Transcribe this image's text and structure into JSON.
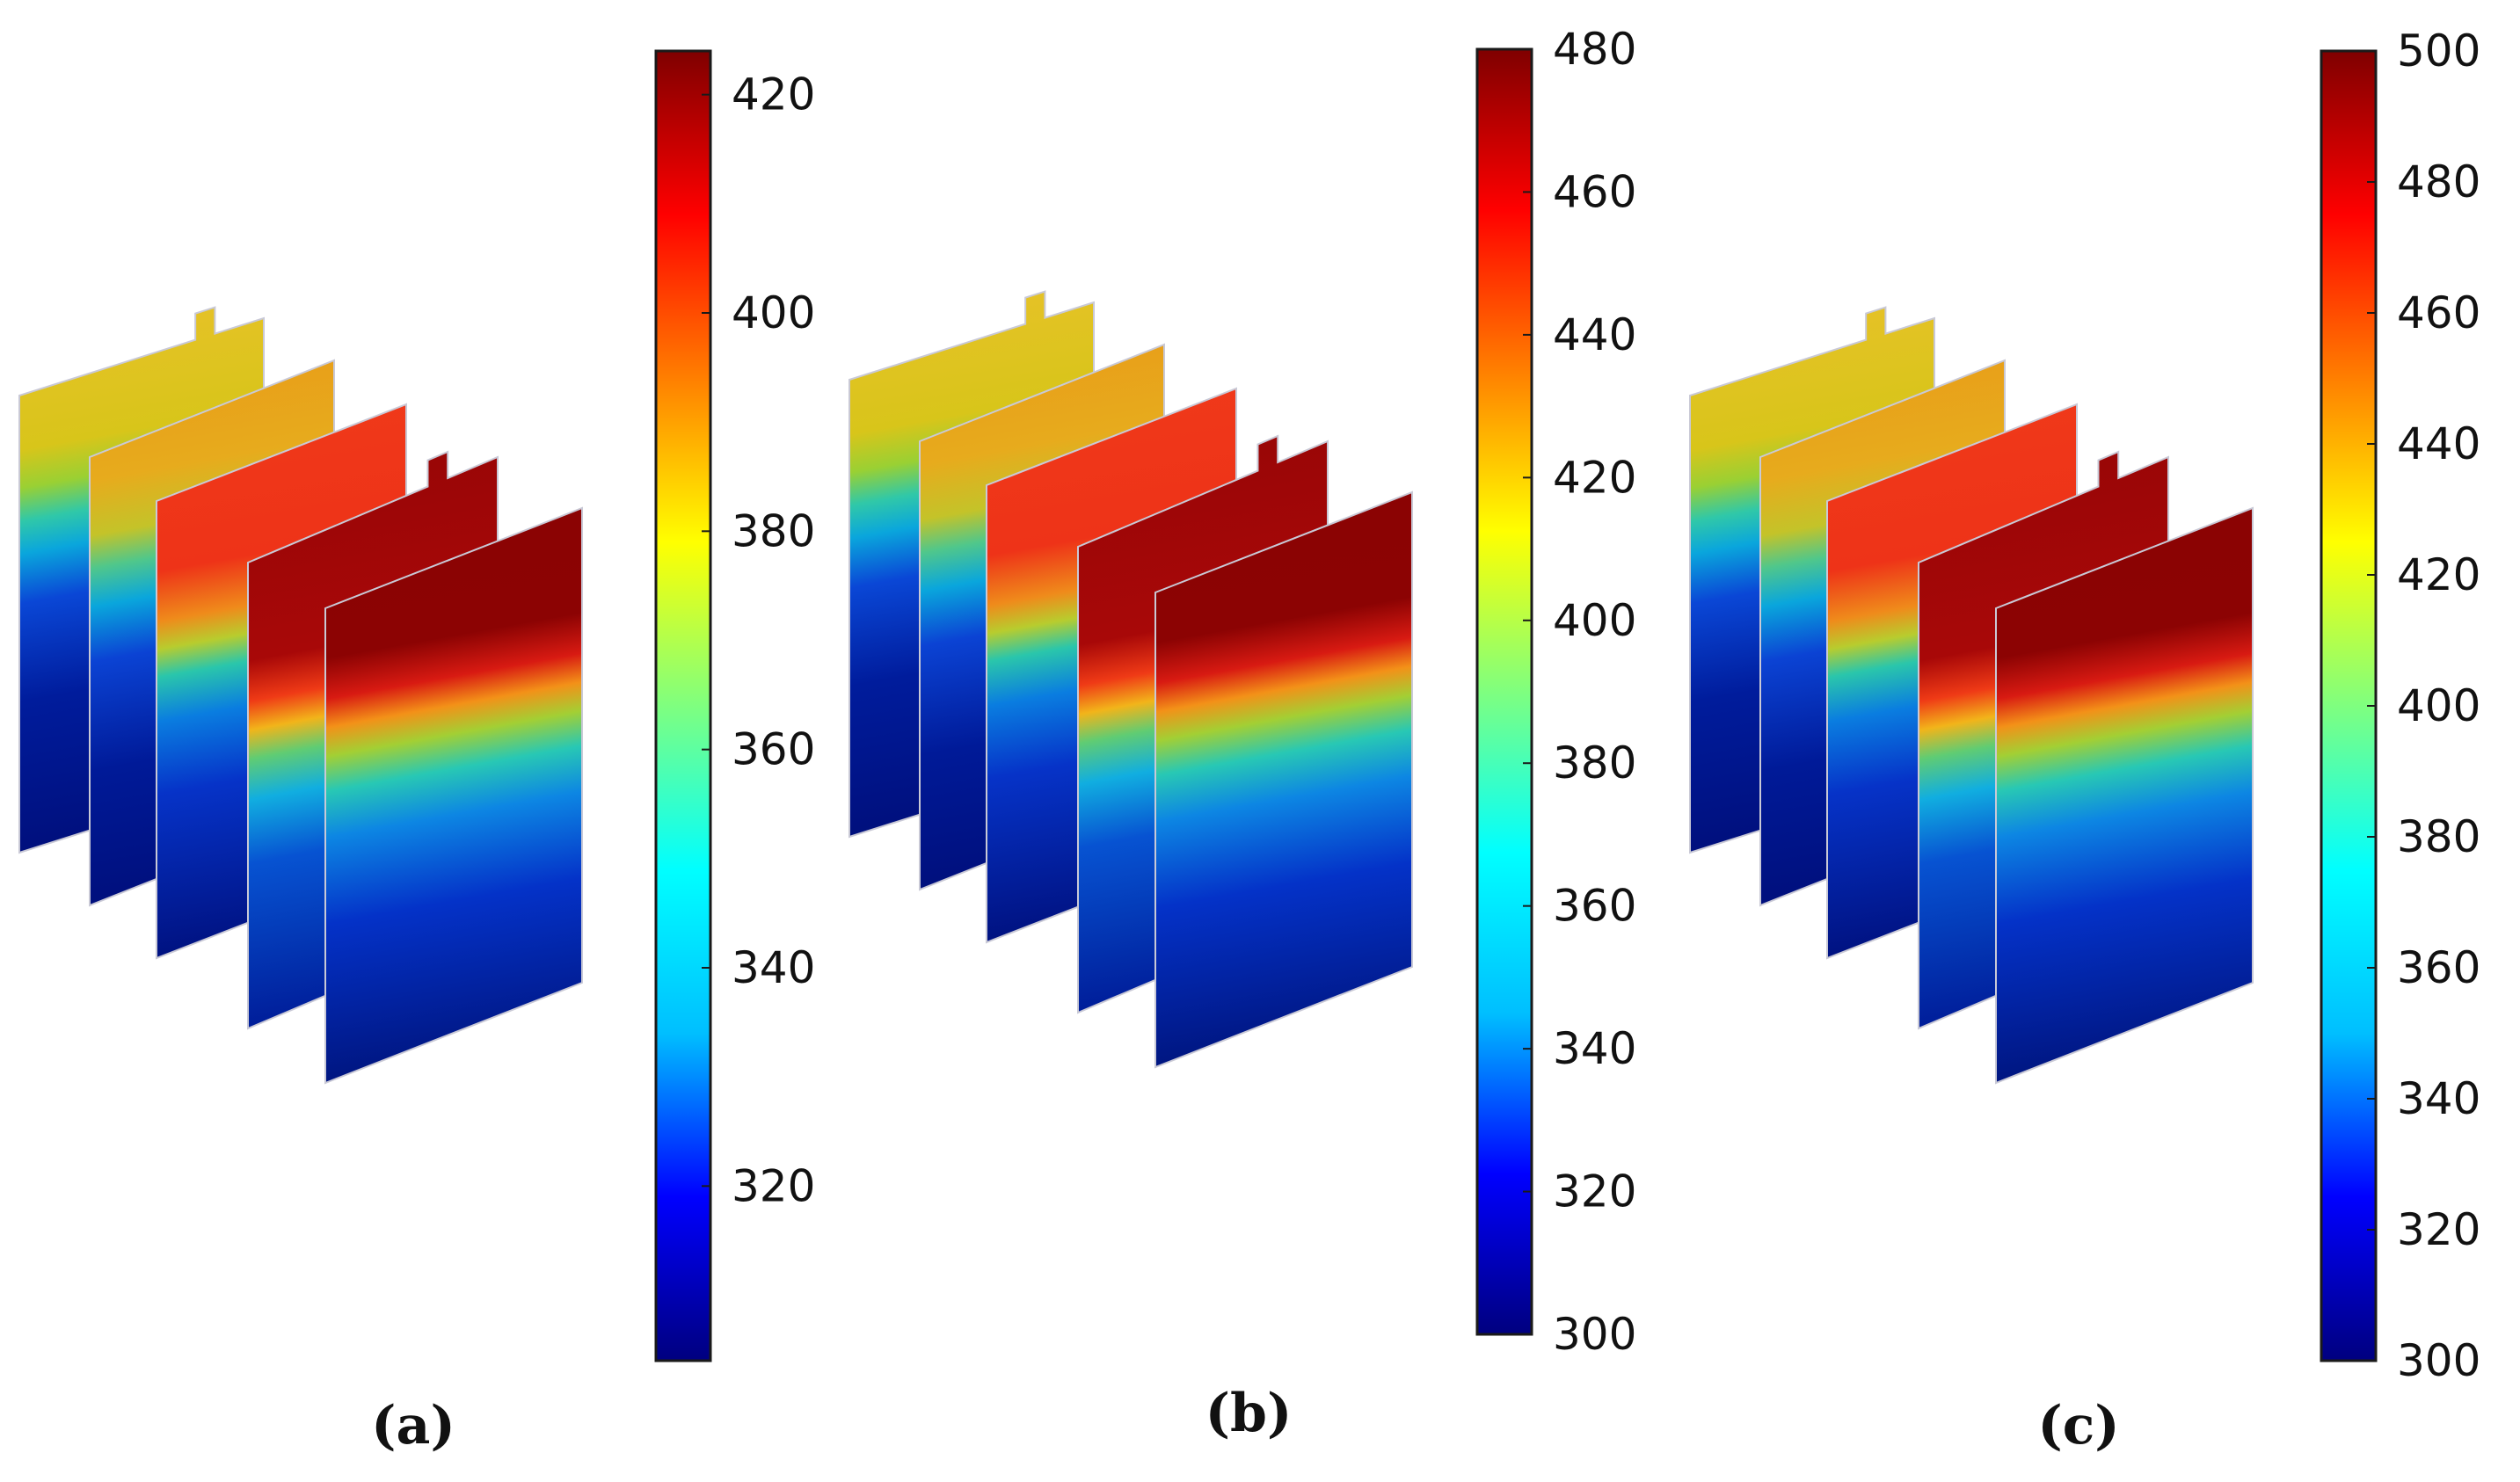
{
  "panels": [
    {
      "caption": "(a)",
      "colorbar": {
        "min": 304,
        "max": 424,
        "ticks": [
          "320",
          "340",
          "360",
          "380",
          "400",
          "420"
        ]
      }
    },
    {
      "caption": "(b)",
      "colorbar": {
        "min": 300,
        "max": 480,
        "ticks": [
          "300",
          "320",
          "340",
          "360",
          "380",
          "400",
          "420",
          "440",
          "460",
          "480"
        ]
      }
    },
    {
      "caption": "(c)",
      "colorbar": {
        "min": 300,
        "max": 500,
        "ticks": [
          "300",
          "320",
          "340",
          "360",
          "380",
          "400",
          "420",
          "440",
          "460",
          "480",
          "500"
        ]
      }
    }
  ],
  "colormap": [
    "#00007f",
    "#0000ff",
    "#00bfff",
    "#00ffff",
    "#7fff7f",
    "#ffff00",
    "#ff7f00",
    "#ff0000",
    "#7f0000"
  ]
}
